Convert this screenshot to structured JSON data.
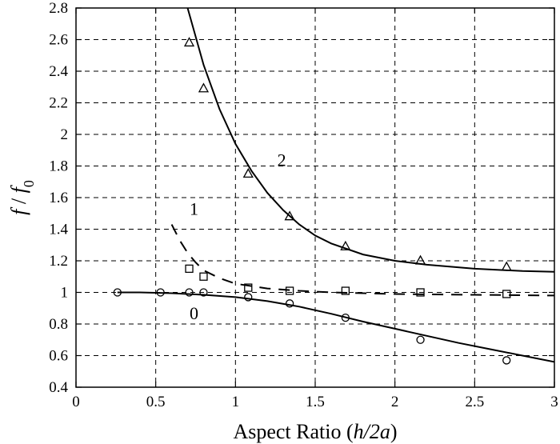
{
  "chart_data": {
    "type": "scatter",
    "xlabel": "Aspect Ratio",
    "xlabel_var": "(h/2a)",
    "ylabel": "f / f0",
    "xlim": [
      0,
      3
    ],
    "ylim": [
      0.4,
      2.8
    ],
    "xticks": [
      0,
      0.5,
      1,
      1.5,
      2,
      2.5,
      3
    ],
    "yticks": [
      0.4,
      0.6,
      0.8,
      1,
      1.2,
      1.4,
      1.6,
      1.8,
      2,
      2.2,
      2.4,
      2.6,
      2.8
    ],
    "x_tick_labels": [
      "0",
      "0.5",
      "1",
      "1.5",
      "2",
      "2.5",
      "3"
    ],
    "y_tick_labels": [
      "0.4",
      "0.6",
      "0.8",
      "1",
      "1.2",
      "1.4",
      "1.6",
      "1.8",
      "2",
      "2.2",
      "2.4",
      "2.6",
      "2.8"
    ],
    "grid": true,
    "series": [
      {
        "label": "0",
        "marker": "circle",
        "points": [
          [
            0.26,
            1.0
          ],
          [
            0.53,
            1.0
          ],
          [
            0.71,
            1.0
          ],
          [
            0.8,
            1.0
          ],
          [
            1.08,
            0.97
          ],
          [
            1.34,
            0.93
          ],
          [
            1.69,
            0.84
          ],
          [
            2.16,
            0.7
          ],
          [
            2.7,
            0.57
          ]
        ],
        "curve_style": "solid",
        "curve": [
          [
            0.26,
            1.0
          ],
          [
            0.4,
            1.0
          ],
          [
            0.6,
            0.995
          ],
          [
            0.8,
            0.985
          ],
          [
            1.0,
            0.97
          ],
          [
            1.2,
            0.945
          ],
          [
            1.4,
            0.91
          ],
          [
            1.6,
            0.865
          ],
          [
            1.8,
            0.815
          ],
          [
            2.0,
            0.77
          ],
          [
            2.2,
            0.725
          ],
          [
            2.4,
            0.68
          ],
          [
            2.6,
            0.64
          ],
          [
            2.8,
            0.6
          ],
          [
            3.0,
            0.56
          ]
        ]
      },
      {
        "label": "1",
        "marker": "square",
        "points": [
          [
            0.71,
            1.15
          ],
          [
            0.8,
            1.1
          ],
          [
            1.08,
            1.03
          ],
          [
            1.34,
            1.01
          ],
          [
            1.69,
            1.01
          ],
          [
            2.16,
            1.0
          ],
          [
            2.7,
            0.99
          ]
        ],
        "curve_style": "dashed",
        "curve": [
          [
            0.6,
            1.43
          ],
          [
            0.65,
            1.33
          ],
          [
            0.7,
            1.25
          ],
          [
            0.75,
            1.19
          ],
          [
            0.8,
            1.14
          ],
          [
            0.9,
            1.09
          ],
          [
            1.0,
            1.055
          ],
          [
            1.2,
            1.025
          ],
          [
            1.4,
            1.01
          ],
          [
            1.6,
            1.0
          ],
          [
            2.0,
            0.99
          ],
          [
            2.5,
            0.985
          ],
          [
            3.0,
            0.98
          ]
        ]
      },
      {
        "label": "2",
        "marker": "triangle",
        "points": [
          [
            0.71,
            2.58
          ],
          [
            0.8,
            2.29
          ],
          [
            1.08,
            1.75
          ],
          [
            1.34,
            1.48
          ],
          [
            1.69,
            1.29
          ],
          [
            2.16,
            1.2
          ],
          [
            2.7,
            1.16
          ]
        ],
        "curve_style": "solid",
        "curve": [
          [
            0.7,
            2.8
          ],
          [
            0.75,
            2.62
          ],
          [
            0.8,
            2.44
          ],
          [
            0.9,
            2.16
          ],
          [
            1.0,
            1.94
          ],
          [
            1.1,
            1.77
          ],
          [
            1.2,
            1.63
          ],
          [
            1.3,
            1.52
          ],
          [
            1.4,
            1.43
          ],
          [
            1.5,
            1.36
          ],
          [
            1.6,
            1.31
          ],
          [
            1.8,
            1.24
          ],
          [
            2.0,
            1.2
          ],
          [
            2.2,
            1.175
          ],
          [
            2.5,
            1.15
          ],
          [
            2.8,
            1.135
          ],
          [
            3.0,
            1.13
          ]
        ]
      }
    ],
    "curve_labels": [
      {
        "text": "0",
        "x": 0.74,
        "y": 0.83
      },
      {
        "text": "1",
        "x": 0.74,
        "y": 1.49
      },
      {
        "text": "2",
        "x": 1.29,
        "y": 1.8
      }
    ]
  }
}
